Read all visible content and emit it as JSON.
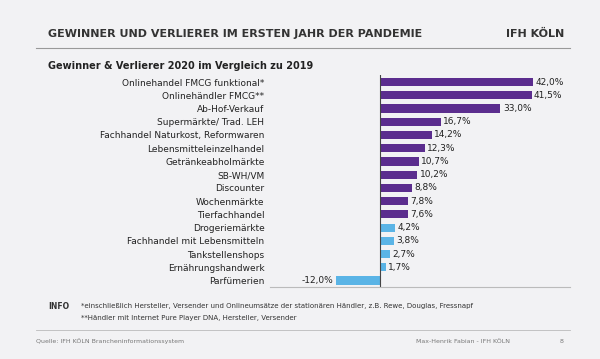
{
  "chart_data": {
    "type": "bar",
    "orientation": "horizontal",
    "title": "GEWINNER UND VERLIERER IM ERSTEN JAHR DER PANDEMIE",
    "subtitle": "Gewinner & Verlierer 2020 im Vergleich zu 2019",
    "categories": [
      "Onlinehandel FMCG funktional*",
      "Onlinehändler FMCG**",
      "Ab-Hof-Verkauf",
      "Supermärkte/ Trad. LEH",
      "Fachhandel Naturkost, Reformwaren",
      "Lebensmitteleinzelhandel",
      "Getränkeabholmärkte",
      "SB-WH/VM",
      "Discounter",
      "Wochenmärkte",
      "Tierfachhandel",
      "Drogeriemärkte",
      "Fachhandel mit Lebensmitteln",
      "Tankstellenshops",
      "Ernährungshandwerk",
      "Parfümerien"
    ],
    "values": [
      42.0,
      41.5,
      33.0,
      16.7,
      14.2,
      12.3,
      10.7,
      10.2,
      8.8,
      7.8,
      7.6,
      4.2,
      3.8,
      2.7,
      1.7,
      -12.0
    ],
    "value_labels": [
      "42,0%",
      "41,5%",
      "33,0%",
      "16,7%",
      "14,2%",
      "12,3%",
      "10,7%",
      "10,2%",
      "8,8%",
      "7,8%",
      "7,6%",
      "4,2%",
      "3,8%",
      "2,7%",
      "1,7%",
      "-12,0%"
    ],
    "colors": [
      "#5b2d8e",
      "#5b2d8e",
      "#5b2d8e",
      "#5b2d8e",
      "#5b2d8e",
      "#5b2d8e",
      "#5b2d8e",
      "#5b2d8e",
      "#5b2d8e",
      "#5b2d8e",
      "#5b2d8e",
      "#5ab4e6",
      "#5ab4e6",
      "#5ab4e6",
      "#5ab4e6",
      "#5ab4e6"
    ],
    "xlim": [
      -30,
      52
    ],
    "data_labels": true,
    "tick_labels": "y",
    "grid": false,
    "annotations": [
      "IFH KÖLN",
      "INFO",
      "*einschließlich Hersteller, Versender und Onlineumsätze der stationären Händler, z.B. Rewe, Douglas, Fressnapf",
      "**Händler mit Internet Pure Player DNA, Hersteller, Versender",
      "Quelle: IFH KÖLN Brancheninformationssystem",
      "Max-Henrik Fabian - IFH KÖLN",
      "8"
    ]
  }
}
